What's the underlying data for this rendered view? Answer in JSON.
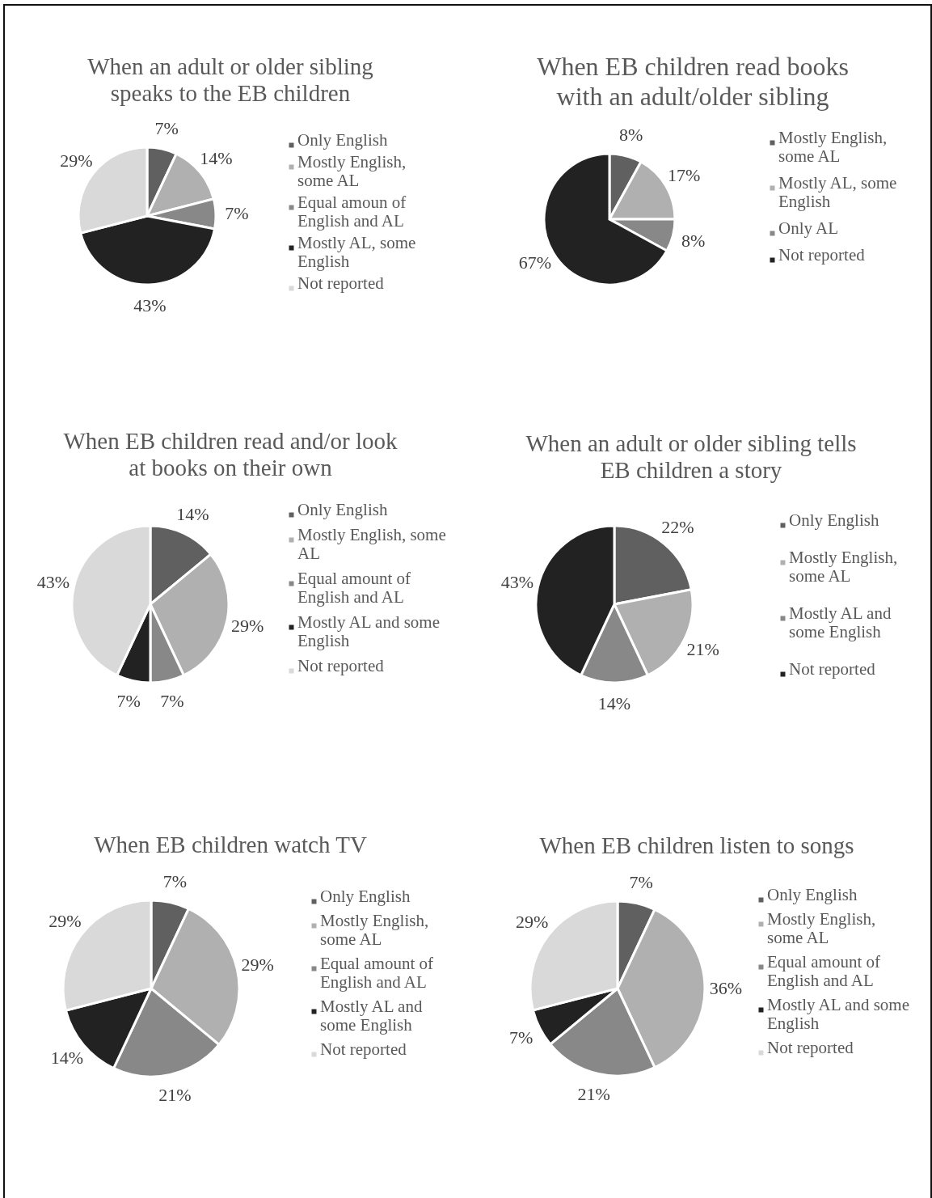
{
  "chart_data": [
    {
      "type": "pie",
      "title": "When an adult or older sibling speaks to the EB children",
      "categories": [
        "Only English",
        "Mostly English, some AL",
        "Equal amoun of English and AL",
        "Mostly AL, some English",
        "Not reported"
      ],
      "values": [
        7,
        14,
        7,
        43,
        29
      ],
      "colors": [
        "#606060",
        "#b0b0b0",
        "#888888",
        "#222222",
        "#d9d9d9"
      ],
      "value_labels": [
        "7%",
        "14%",
        "7%",
        "43%",
        "29%"
      ],
      "legend": "right"
    },
    {
      "type": "pie",
      "title": "When EB children read books with an adult/older sibling",
      "categories": [
        "Mostly English, some AL",
        "Mostly AL, some English",
        "Only AL",
        "Not reported"
      ],
      "values": [
        8,
        17,
        8,
        67
      ],
      "colors": [
        "#606060",
        "#b0b0b0",
        "#888888",
        "#222222"
      ],
      "value_labels": [
        "8%",
        "17%",
        "8%",
        "67%"
      ],
      "legend": "right"
    },
    {
      "type": "pie",
      "title": "When EB children read and/or look at books on their own",
      "categories": [
        "Only English",
        "Mostly English, some AL",
        "Equal amount of English and AL",
        "Mostly AL and some English",
        "Not reported"
      ],
      "values": [
        14,
        29,
        7,
        7,
        43
      ],
      "colors": [
        "#606060",
        "#b0b0b0",
        "#888888",
        "#222222",
        "#d9d9d9"
      ],
      "value_labels": [
        "14%",
        "29%",
        "7%",
        "7%",
        "43%"
      ],
      "legend": "right"
    },
    {
      "type": "pie",
      "title": "When an adult or older sibling tells EB children a story",
      "categories": [
        "Only English",
        "Mostly English, some AL",
        "Mostly AL and some English",
        "Not reported"
      ],
      "values": [
        22,
        21,
        14,
        43
      ],
      "colors": [
        "#606060",
        "#b0b0b0",
        "#888888",
        "#222222"
      ],
      "value_labels": [
        "22%",
        "21%",
        "14%",
        "43%"
      ],
      "legend": "right"
    },
    {
      "type": "pie",
      "title": "When EB children watch TV",
      "categories": [
        "Only English",
        "Mostly English, some AL",
        "Equal amount of English and AL",
        "Mostly AL and some English",
        "Not reported"
      ],
      "values": [
        7,
        29,
        21,
        14,
        29
      ],
      "colors": [
        "#606060",
        "#b0b0b0",
        "#888888",
        "#222222",
        "#d9d9d9"
      ],
      "value_labels": [
        "7%",
        "29%",
        "21%",
        "14%",
        "29%"
      ],
      "legend": "right"
    },
    {
      "type": "pie",
      "title": "When EB children listen to songs",
      "categories": [
        "Only English",
        "Mostly English, some AL",
        "Equal amount of English and AL",
        "Mostly AL and some English",
        "Not reported"
      ],
      "values": [
        7,
        36,
        21,
        7,
        29
      ],
      "colors": [
        "#606060",
        "#b0b0b0",
        "#888888",
        "#222222",
        "#d9d9d9"
      ],
      "value_labels": [
        "7%",
        "36%",
        "21%",
        "7%",
        "29%"
      ],
      "legend": "right"
    }
  ]
}
